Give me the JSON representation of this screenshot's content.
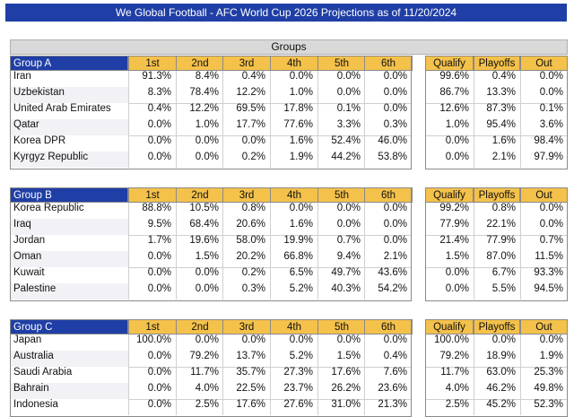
{
  "title": "We Global Football - AFC World Cup 2026 Projections as of 11/20/2024",
  "groups_header": "Groups",
  "columns": [
    "1st",
    "2nd",
    "3rd",
    "4th",
    "5th",
    "6th"
  ],
  "summary_columns": [
    "Qualify",
    "Playoffs",
    "Out"
  ],
  "groups": [
    {
      "name": "Group A",
      "teams": [
        {
          "team": "Iran",
          "p": [
            "91.3%",
            "8.4%",
            "0.4%",
            "0.0%",
            "0.0%",
            "0.0%"
          ],
          "s": [
            "99.6%",
            "0.4%",
            "0.0%"
          ]
        },
        {
          "team": "Uzbekistan",
          "p": [
            "8.3%",
            "78.4%",
            "12.2%",
            "1.0%",
            "0.0%",
            "0.0%"
          ],
          "s": [
            "86.7%",
            "13.3%",
            "0.0%"
          ]
        },
        {
          "team": "United Arab Emirates",
          "p": [
            "0.4%",
            "12.2%",
            "69.5%",
            "17.8%",
            "0.1%",
            "0.0%"
          ],
          "s": [
            "12.6%",
            "87.3%",
            "0.1%"
          ]
        },
        {
          "team": "Qatar",
          "p": [
            "0.0%",
            "1.0%",
            "17.7%",
            "77.6%",
            "3.3%",
            "0.3%"
          ],
          "s": [
            "1.0%",
            "95.4%",
            "3.6%"
          ]
        },
        {
          "team": "Korea DPR",
          "p": [
            "0.0%",
            "0.0%",
            "0.0%",
            "1.6%",
            "52.4%",
            "46.0%"
          ],
          "s": [
            "0.0%",
            "1.6%",
            "98.4%"
          ]
        },
        {
          "team": "Kyrgyz Republic",
          "p": [
            "0.0%",
            "0.0%",
            "0.2%",
            "1.9%",
            "44.2%",
            "53.8%"
          ],
          "s": [
            "0.0%",
            "2.1%",
            "97.9%"
          ]
        }
      ]
    },
    {
      "name": "Group B",
      "teams": [
        {
          "team": "Korea Republic",
          "p": [
            "88.8%",
            "10.5%",
            "0.8%",
            "0.0%",
            "0.0%",
            "0.0%"
          ],
          "s": [
            "99.2%",
            "0.8%",
            "0.0%"
          ]
        },
        {
          "team": "Iraq",
          "p": [
            "9.5%",
            "68.4%",
            "20.6%",
            "1.6%",
            "0.0%",
            "0.0%"
          ],
          "s": [
            "77.9%",
            "22.1%",
            "0.0%"
          ]
        },
        {
          "team": "Jordan",
          "p": [
            "1.7%",
            "19.6%",
            "58.0%",
            "19.9%",
            "0.7%",
            "0.0%"
          ],
          "s": [
            "21.4%",
            "77.9%",
            "0.7%"
          ]
        },
        {
          "team": "Oman",
          "p": [
            "0.0%",
            "1.5%",
            "20.2%",
            "66.8%",
            "9.4%",
            "2.1%"
          ],
          "s": [
            "1.5%",
            "87.0%",
            "11.5%"
          ]
        },
        {
          "team": "Kuwait",
          "p": [
            "0.0%",
            "0.0%",
            "0.2%",
            "6.5%",
            "49.7%",
            "43.6%"
          ],
          "s": [
            "0.0%",
            "6.7%",
            "93.3%"
          ]
        },
        {
          "team": "Palestine",
          "p": [
            "0.0%",
            "0.0%",
            "0.3%",
            "5.2%",
            "40.3%",
            "54.2%"
          ],
          "s": [
            "0.0%",
            "5.5%",
            "94.5%"
          ]
        }
      ]
    },
    {
      "name": "Group C",
      "teams": [
        {
          "team": "Japan",
          "p": [
            "100.0%",
            "0.0%",
            "0.0%",
            "0.0%",
            "0.0%",
            "0.0%"
          ],
          "s": [
            "100.0%",
            "0.0%",
            "0.0%"
          ]
        },
        {
          "team": "Australia",
          "p": [
            "0.0%",
            "79.2%",
            "13.7%",
            "5.2%",
            "1.5%",
            "0.4%"
          ],
          "s": [
            "79.2%",
            "18.9%",
            "1.9%"
          ]
        },
        {
          "team": "Saudi Arabia",
          "p": [
            "0.0%",
            "11.7%",
            "35.7%",
            "27.3%",
            "17.6%",
            "7.6%"
          ],
          "s": [
            "11.7%",
            "63.0%",
            "25.3%"
          ]
        },
        {
          "team": "Bahrain",
          "p": [
            "0.0%",
            "4.0%",
            "22.5%",
            "23.7%",
            "26.2%",
            "23.6%"
          ],
          "s": [
            "4.0%",
            "46.2%",
            "49.8%"
          ]
        },
        {
          "team": "Indonesia",
          "p": [
            "0.0%",
            "2.5%",
            "17.6%",
            "27.6%",
            "31.0%",
            "21.3%"
          ],
          "s": [
            "2.5%",
            "45.2%",
            "52.3%"
          ]
        }
      ]
    }
  ]
}
